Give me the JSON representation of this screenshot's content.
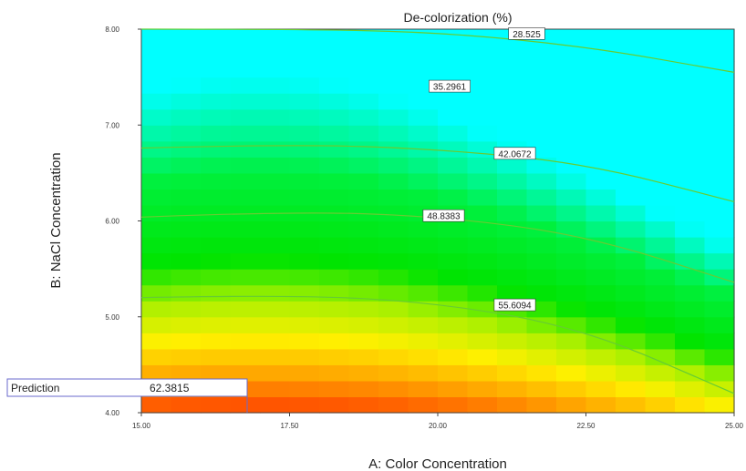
{
  "chart_data": {
    "type": "heatmap",
    "subtype": "contour",
    "title": "De-colorization (%)",
    "xlabel": "A: Color Concentration",
    "ylabel": "B: NaCl Concentration",
    "xlim": [
      15.0,
      25.0
    ],
    "ylim": [
      4.0,
      8.0
    ],
    "x_ticks": [
      "15.00",
      "17.50",
      "20.00",
      "22.50",
      "25.00"
    ],
    "y_ticks": [
      "4.00",
      "5.00",
      "6.00",
      "7.00",
      "8.00"
    ],
    "color_scale": {
      "low": "#ff3300",
      "mid": "#ffff00",
      "high": "#00ff00",
      "top": "#00ffff"
    },
    "contour_color": "#66cc33",
    "contours": [
      {
        "label": "28.525",
        "label_at": [
          21.5,
          7.95
        ],
        "points": [
          [
            15.0,
            8.1
          ],
          [
            17.5,
            8.05
          ],
          [
            20.0,
            7.97
          ],
          [
            22.5,
            7.82
          ],
          [
            25.0,
            7.55
          ]
        ]
      },
      {
        "label": "35.2961",
        "label_at": [
          20.2,
          7.4
        ],
        "points": []
      },
      {
        "label": "42.0672",
        "label_at": [
          21.3,
          6.7
        ],
        "points": [
          [
            15.0,
            6.76
          ],
          [
            17.5,
            6.8
          ],
          [
            20.0,
            6.75
          ],
          [
            22.5,
            6.6
          ],
          [
            25.0,
            6.2
          ]
        ]
      },
      {
        "label": "48.8383",
        "label_at": [
          20.1,
          6.05
        ],
        "points": [
          [
            15.0,
            6.04
          ],
          [
            17.5,
            6.1
          ],
          [
            20.0,
            6.05
          ],
          [
            22.5,
            5.85
          ],
          [
            25.0,
            5.36
          ]
        ]
      },
      {
        "label": "55.6094",
        "label_at": [
          21.3,
          5.12
        ],
        "points": [
          [
            15.0,
            5.2
          ],
          [
            17.5,
            5.23
          ],
          [
            20.0,
            5.15
          ],
          [
            22.5,
            4.87
          ],
          [
            25.0,
            4.2
          ]
        ]
      }
    ],
    "prediction": {
      "label": "Prediction",
      "value": "62.3815"
    }
  }
}
